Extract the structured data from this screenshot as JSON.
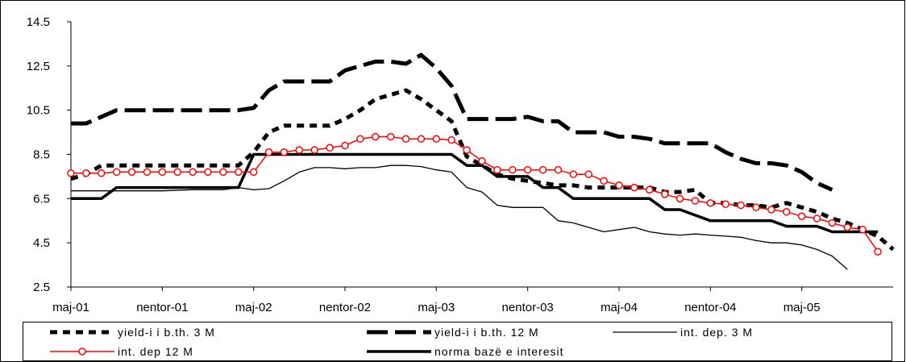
{
  "chart_data": {
    "type": "line",
    "title": "",
    "xlabel": "",
    "ylabel": "",
    "ylim": [
      2.5,
      14.5
    ],
    "yticks": [
      "2.5",
      "4.5",
      "6.5",
      "8.5",
      "10.5",
      "12.5",
      "14.5"
    ],
    "xticks": [
      "maj-01",
      "nentor-01",
      "maj-02",
      "nentor-02",
      "maj-03",
      "nentor-03",
      "maj-04",
      "nentor-04",
      "maj-05"
    ],
    "grid": false,
    "legend_position": "bottom",
    "series": [
      {
        "name": "yield-i i b.th. 3 M",
        "color": "#000000",
        "style": "short-dash",
        "points": [
          [
            0,
            7.4
          ],
          [
            1,
            7.6
          ],
          [
            2,
            8.0
          ],
          [
            3,
            8.0
          ],
          [
            4,
            8.0
          ],
          [
            5,
            8.0
          ],
          [
            6,
            8.0
          ],
          [
            7,
            8.0
          ],
          [
            8,
            8.0
          ],
          [
            9,
            8.0
          ],
          [
            10,
            8.0
          ],
          [
            11,
            8.0
          ],
          [
            12,
            8.6
          ],
          [
            13,
            9.5
          ],
          [
            14,
            9.8
          ],
          [
            15,
            9.8
          ],
          [
            16,
            9.8
          ],
          [
            17,
            9.8
          ],
          [
            18,
            10.1
          ],
          [
            19,
            10.5
          ],
          [
            20,
            11.0
          ],
          [
            21,
            11.2
          ],
          [
            22,
            11.4
          ],
          [
            23,
            11.0
          ],
          [
            24,
            10.5
          ],
          [
            25,
            10.0
          ],
          [
            26,
            8.4
          ],
          [
            27,
            8.0
          ],
          [
            28,
            7.6
          ],
          [
            29,
            7.4
          ],
          [
            30,
            7.3
          ],
          [
            31,
            7.2
          ],
          [
            32,
            7.1
          ],
          [
            33,
            7.1
          ],
          [
            34,
            7.0
          ],
          [
            35,
            7.0
          ],
          [
            36,
            7.0
          ],
          [
            37,
            7.0
          ],
          [
            38,
            7.0
          ],
          [
            39,
            6.8
          ],
          [
            40,
            6.8
          ],
          [
            41,
            6.9
          ],
          [
            42,
            6.3
          ],
          [
            43,
            6.3
          ],
          [
            44,
            6.2
          ],
          [
            45,
            6.2
          ],
          [
            46,
            6.1
          ],
          [
            47,
            6.3
          ],
          [
            48,
            6.1
          ],
          [
            49,
            5.9
          ],
          [
            50,
            5.6
          ],
          [
            51,
            5.4
          ],
          [
            52,
            5.1
          ],
          [
            53,
            4.8
          ],
          [
            54,
            4.2
          ]
        ]
      },
      {
        "name": "yield-i i b.th. 12 M",
        "color": "#000000",
        "style": "long-dash",
        "points": [
          [
            0,
            9.9
          ],
          [
            1,
            9.9
          ],
          [
            2,
            10.2
          ],
          [
            3,
            10.5
          ],
          [
            4,
            10.5
          ],
          [
            5,
            10.5
          ],
          [
            6,
            10.5
          ],
          [
            7,
            10.5
          ],
          [
            8,
            10.5
          ],
          [
            9,
            10.5
          ],
          [
            10,
            10.5
          ],
          [
            11,
            10.5
          ],
          [
            12,
            10.6
          ],
          [
            13,
            11.4
          ],
          [
            14,
            11.8
          ],
          [
            15,
            11.8
          ],
          [
            16,
            11.8
          ],
          [
            17,
            11.8
          ],
          [
            18,
            12.3
          ],
          [
            19,
            12.5
          ],
          [
            20,
            12.7
          ],
          [
            21,
            12.7
          ],
          [
            22,
            12.6
          ],
          [
            23,
            13.0
          ],
          [
            24,
            12.4
          ],
          [
            25,
            11.6
          ],
          [
            26,
            10.1
          ],
          [
            27,
            10.1
          ],
          [
            28,
            10.1
          ],
          [
            29,
            10.1
          ],
          [
            30,
            10.2
          ],
          [
            31,
            10.0
          ],
          [
            32,
            10.0
          ],
          [
            33,
            9.5
          ],
          [
            34,
            9.5
          ],
          [
            35,
            9.5
          ],
          [
            36,
            9.3
          ],
          [
            37,
            9.3
          ],
          [
            38,
            9.2
          ],
          [
            39,
            9.0
          ],
          [
            40,
            9.0
          ],
          [
            41,
            9.0
          ],
          [
            42,
            9.0
          ],
          [
            43,
            8.6
          ],
          [
            44,
            8.3
          ],
          [
            45,
            8.1
          ],
          [
            46,
            8.1
          ],
          [
            47,
            8.0
          ],
          [
            48,
            7.7
          ],
          [
            49,
            7.2
          ],
          [
            50,
            6.9
          ]
        ]
      },
      {
        "name": "int. dep. 3 M",
        "color": "#000000",
        "style": "thin",
        "points": [
          [
            0,
            6.85
          ],
          [
            2,
            6.85
          ],
          [
            4,
            6.85
          ],
          [
            6,
            6.85
          ],
          [
            8,
            6.9
          ],
          [
            10,
            6.9
          ],
          [
            11,
            7.0
          ],
          [
            12,
            6.9
          ],
          [
            13,
            6.95
          ],
          [
            14,
            7.3
          ],
          [
            15,
            7.7
          ],
          [
            16,
            7.9
          ],
          [
            17,
            7.9
          ],
          [
            18,
            7.85
          ],
          [
            19,
            7.9
          ],
          [
            20,
            7.9
          ],
          [
            21,
            8.0
          ],
          [
            22,
            8.0
          ],
          [
            23,
            7.95
          ],
          [
            24,
            7.8
          ],
          [
            25,
            7.7
          ],
          [
            26,
            7.0
          ],
          [
            27,
            6.8
          ],
          [
            28,
            6.2
          ],
          [
            29,
            6.1
          ],
          [
            30,
            6.1
          ],
          [
            31,
            6.1
          ],
          [
            32,
            5.5
          ],
          [
            33,
            5.4
          ],
          [
            34,
            5.2
          ],
          [
            35,
            5.0
          ],
          [
            36,
            5.1
          ],
          [
            37,
            5.2
          ],
          [
            38,
            5.0
          ],
          [
            39,
            4.9
          ],
          [
            40,
            4.85
          ],
          [
            41,
            4.9
          ],
          [
            42,
            4.85
          ],
          [
            43,
            4.8
          ],
          [
            44,
            4.75
          ],
          [
            45,
            4.6
          ],
          [
            46,
            4.5
          ],
          [
            47,
            4.5
          ],
          [
            48,
            4.4
          ],
          [
            49,
            4.2
          ],
          [
            50,
            3.9
          ],
          [
            51,
            3.3
          ]
        ]
      },
      {
        "name": "int. dep 12 M",
        "color": "#ff0000",
        "style": "marker",
        "points": [
          [
            0,
            7.65
          ],
          [
            1,
            7.65
          ],
          [
            2,
            7.65
          ],
          [
            3,
            7.7
          ],
          [
            4,
            7.7
          ],
          [
            5,
            7.7
          ],
          [
            6,
            7.7
          ],
          [
            7,
            7.7
          ],
          [
            8,
            7.7
          ],
          [
            9,
            7.7
          ],
          [
            10,
            7.7
          ],
          [
            11,
            7.7
          ],
          [
            12,
            7.7
          ],
          [
            13,
            8.6
          ],
          [
            14,
            8.6
          ],
          [
            15,
            8.7
          ],
          [
            16,
            8.7
          ],
          [
            17,
            8.8
          ],
          [
            18,
            8.9
          ],
          [
            19,
            9.2
          ],
          [
            20,
            9.3
          ],
          [
            21,
            9.3
          ],
          [
            22,
            9.2
          ],
          [
            23,
            9.2
          ],
          [
            24,
            9.2
          ],
          [
            25,
            9.15
          ],
          [
            26,
            8.7
          ],
          [
            27,
            8.2
          ],
          [
            28,
            7.8
          ],
          [
            29,
            7.8
          ],
          [
            30,
            7.8
          ],
          [
            31,
            7.8
          ],
          [
            32,
            7.8
          ],
          [
            33,
            7.6
          ],
          [
            34,
            7.6
          ],
          [
            35,
            7.3
          ],
          [
            36,
            7.1
          ],
          [
            37,
            7.0
          ],
          [
            38,
            6.9
          ],
          [
            39,
            6.7
          ],
          [
            40,
            6.5
          ],
          [
            41,
            6.4
          ],
          [
            42,
            6.3
          ],
          [
            43,
            6.25
          ],
          [
            44,
            6.2
          ],
          [
            45,
            6.1
          ],
          [
            46,
            6.0
          ],
          [
            47,
            5.9
          ],
          [
            48,
            5.7
          ],
          [
            49,
            5.6
          ],
          [
            50,
            5.4
          ],
          [
            51,
            5.2
          ],
          [
            52,
            5.1
          ],
          [
            53,
            4.1
          ]
        ]
      },
      {
        "name": "norma bazë e interesit",
        "color": "#000000",
        "style": "thick",
        "points": [
          [
            0,
            6.5
          ],
          [
            1,
            6.5
          ],
          [
            2,
            6.5
          ],
          [
            3,
            7.0
          ],
          [
            4,
            7.0
          ],
          [
            5,
            7.0
          ],
          [
            6,
            7.0
          ],
          [
            7,
            7.0
          ],
          [
            8,
            7.0
          ],
          [
            9,
            7.0
          ],
          [
            10,
            7.0
          ],
          [
            11,
            7.0
          ],
          [
            12,
            8.5
          ],
          [
            13,
            8.5
          ],
          [
            14,
            8.5
          ],
          [
            15,
            8.5
          ],
          [
            16,
            8.5
          ],
          [
            17,
            8.5
          ],
          [
            18,
            8.5
          ],
          [
            19,
            8.5
          ],
          [
            20,
            8.5
          ],
          [
            21,
            8.5
          ],
          [
            22,
            8.5
          ],
          [
            23,
            8.5
          ],
          [
            24,
            8.5
          ],
          [
            25,
            8.5
          ],
          [
            26,
            8.0
          ],
          [
            27,
            8.0
          ],
          [
            28,
            7.5
          ],
          [
            29,
            7.5
          ],
          [
            30,
            7.5
          ],
          [
            31,
            7.0
          ],
          [
            32,
            7.0
          ],
          [
            33,
            6.5
          ],
          [
            34,
            6.5
          ],
          [
            35,
            6.5
          ],
          [
            36,
            6.5
          ],
          [
            37,
            6.5
          ],
          [
            38,
            6.5
          ],
          [
            39,
            6.0
          ],
          [
            40,
            6.0
          ],
          [
            41,
            5.75
          ],
          [
            42,
            5.5
          ],
          [
            43,
            5.5
          ],
          [
            44,
            5.5
          ],
          [
            45,
            5.5
          ],
          [
            46,
            5.5
          ],
          [
            47,
            5.25
          ],
          [
            48,
            5.25
          ],
          [
            49,
            5.25
          ],
          [
            50,
            5.0
          ],
          [
            51,
            5.0
          ],
          [
            52,
            5.0
          ],
          [
            53,
            5.0
          ]
        ]
      }
    ]
  }
}
